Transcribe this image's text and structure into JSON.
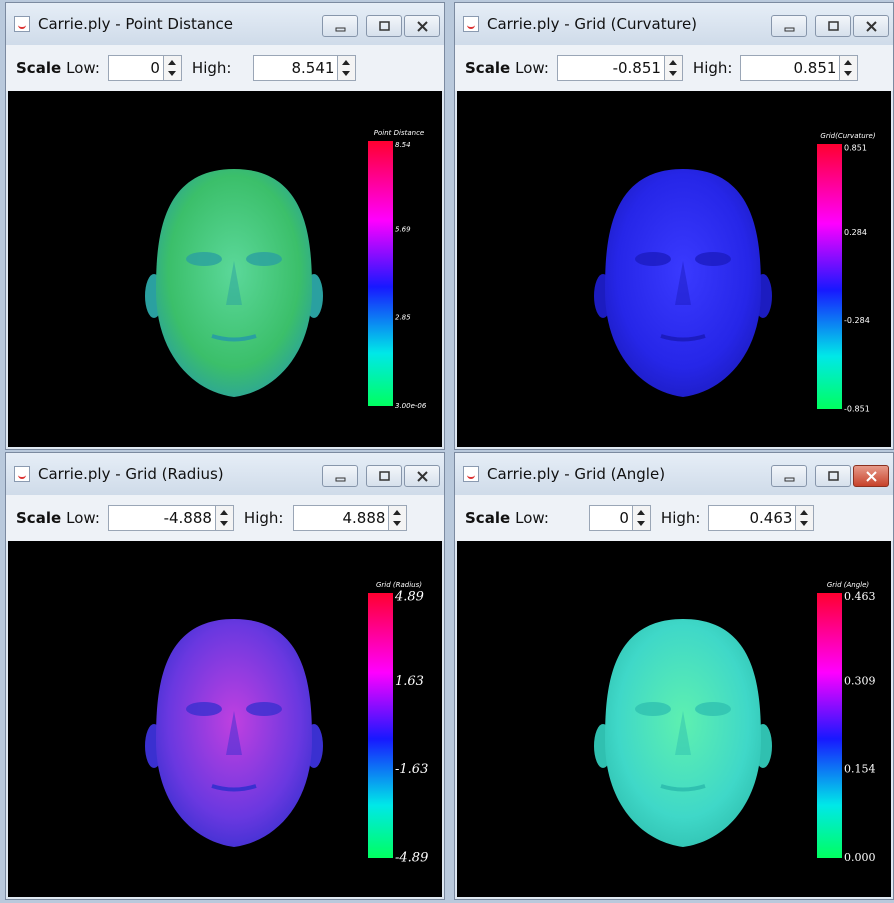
{
  "windows": [
    {
      "title": "Carrie.ply - Point Distance",
      "scale_label": "Scale",
      "low_label": "Low:",
      "low": "0",
      "high_label": "High:",
      "high": "8.541",
      "colorbar": {
        "title": "Point Distance",
        "labels": [
          "8.54",
          "5.69",
          "2.85",
          "3.00e-06"
        ]
      }
    },
    {
      "title": "Carrie.ply - Grid (Curvature)",
      "scale_label": "Scale",
      "low_label": "Low:",
      "low": "-0.851",
      "high_label": "High:",
      "high": "0.851",
      "colorbar": {
        "title": "Grid(Curvature)",
        "labels": [
          "0.851",
          "0.284",
          "-0.284",
          "-0.851"
        ]
      }
    },
    {
      "title": "Carrie.ply - Grid (Radius)",
      "scale_label": "Scale",
      "low_label": "Low:",
      "low": "-4.888",
      "high_label": "High:",
      "high": "4.888",
      "colorbar": {
        "title": "Grid (Radius)",
        "labels": [
          "4.89",
          "1.63",
          "-1.63",
          "-4.89"
        ]
      }
    },
    {
      "title": "Carrie.ply - Grid (Angle)",
      "scale_label": "Scale",
      "low_label": "Low:",
      "low": "0",
      "high_label": "High:",
      "high": "0.463",
      "colorbar": {
        "title": "Grid (Angle)",
        "labels": [
          "0.463",
          "0.309",
          "0.154",
          "0.000"
        ]
      }
    }
  ]
}
